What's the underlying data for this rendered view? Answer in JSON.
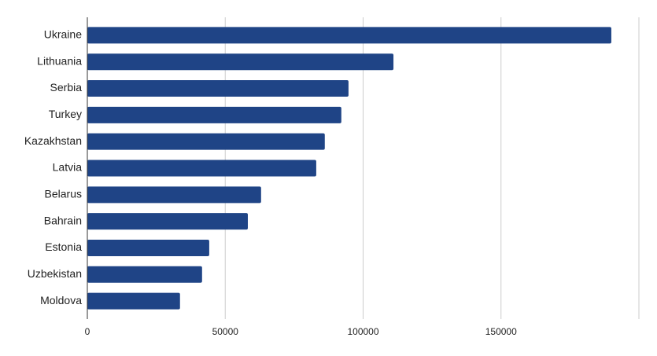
{
  "chart_data": {
    "type": "hbar",
    "categories": [
      "Ukraine",
      "Lithuania",
      "Serbia",
      "Turkey",
      "Kazakhstan",
      "Latvia",
      "Belarus",
      "Bahrain",
      "Estonia",
      "Uzbekistan",
      "Moldova"
    ],
    "values": [
      190000,
      111000,
      94700,
      92100,
      86100,
      83000,
      63000,
      58200,
      44200,
      41600,
      33600
    ],
    "color": "#1f4486",
    "xlim": [
      0,
      200000
    ],
    "xticks": [
      0,
      50000,
      100000,
      150000
    ],
    "grid": true
  }
}
